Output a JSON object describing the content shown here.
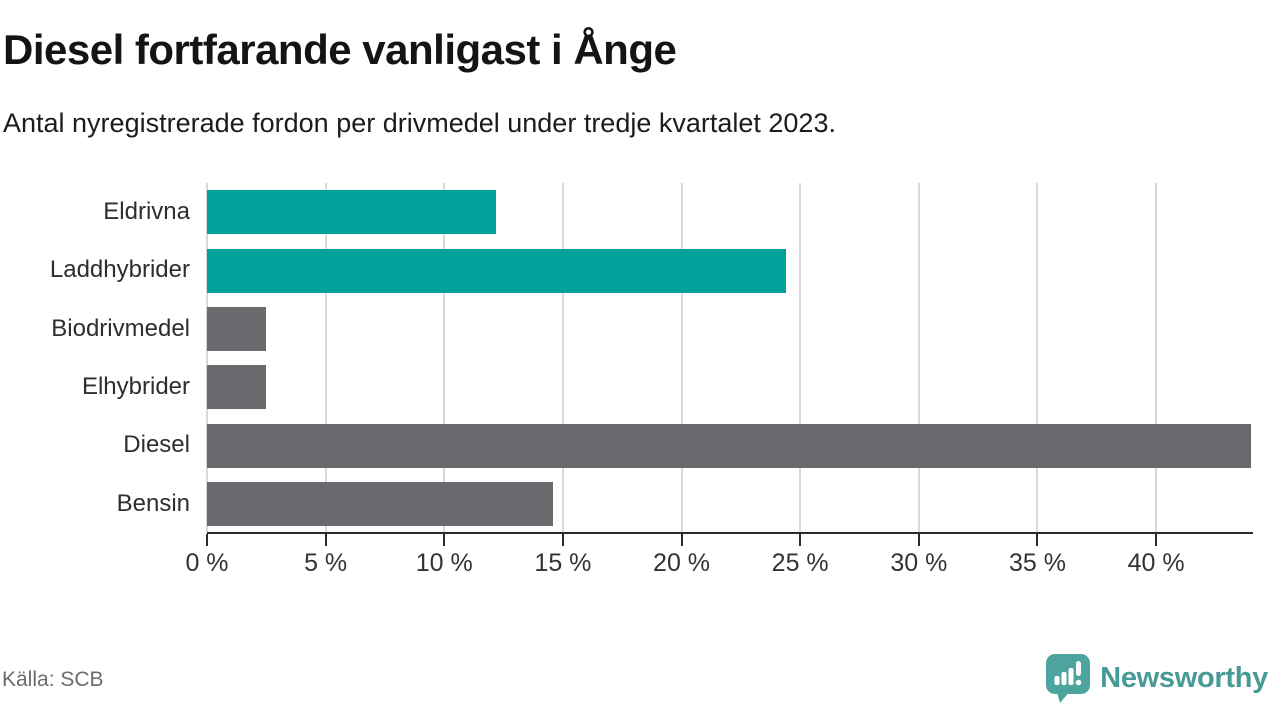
{
  "header": {
    "title": "Diesel fortfarande vanligast i Ånge",
    "subtitle": "Antal nyregistrerade fordon per drivmedel under tredje kvartalet 2023."
  },
  "chart_data": {
    "type": "bar",
    "orientation": "horizontal",
    "title": "Diesel fortfarande vanligast i Ånge",
    "subtitle": "Antal nyregistrerade fordon per drivmedel under tredje kvartalet 2023.",
    "categories": [
      "Eldrivna",
      "Laddhybrider",
      "Biodrivmedel",
      "Elhybrider",
      "Diesel",
      "Bensin"
    ],
    "values": [
      12.2,
      24.4,
      2.5,
      2.5,
      44.0,
      14.6
    ],
    "unit": "%",
    "colors": [
      "#00a19a",
      "#00a19a",
      "#6a696d",
      "#6a696d",
      "#6a696d",
      "#6a696d"
    ],
    "highlight_color": "#00a19a",
    "default_color": "#6a696d",
    "xlabel": "",
    "ylabel": "",
    "xlim": [
      0,
      44
    ],
    "ticks": [
      0,
      5,
      10,
      15,
      20,
      25,
      30,
      35,
      40
    ],
    "tick_labels": [
      "0 %",
      "5 %",
      "10 %",
      "15 %",
      "20 %",
      "25 %",
      "30 %",
      "35 %",
      "40 %"
    ],
    "grid": true,
    "gridline_color": "#d9d9d9",
    "axis_color": "#2b2b2b",
    "legend": "none"
  },
  "footer": {
    "source": "Källa: SCB",
    "brand": "Newsworthy",
    "brand_color": "#479a95"
  }
}
